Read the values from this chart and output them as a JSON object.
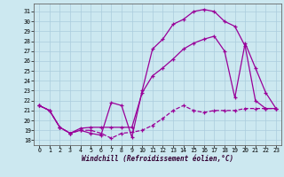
{
  "xlabel": "Windchill (Refroidissement éolien,°C)",
  "background_color": "#cce8f0",
  "grid_color": "#aaccdd",
  "line_color": "#990099",
  "xlim": [
    -0.5,
    23.5
  ],
  "ylim": [
    17.5,
    31.8
  ],
  "yticks": [
    18,
    19,
    20,
    21,
    22,
    23,
    24,
    25,
    26,
    27,
    28,
    29,
    30,
    31
  ],
  "xticks": [
    0,
    1,
    2,
    3,
    4,
    5,
    6,
    7,
    8,
    9,
    10,
    11,
    12,
    13,
    14,
    15,
    16,
    17,
    18,
    19,
    20,
    21,
    22,
    23
  ],
  "series1_x": [
    0,
    1,
    2,
    3,
    4,
    5,
    6,
    7,
    8,
    9,
    10,
    11,
    12,
    13,
    14,
    15,
    16,
    17,
    18,
    19,
    20,
    21,
    22,
    23
  ],
  "series1_y": [
    21.5,
    21.0,
    19.3,
    18.7,
    19.0,
    19.0,
    18.7,
    18.2,
    18.7,
    18.8,
    19.0,
    19.5,
    20.2,
    21.0,
    21.5,
    21.0,
    20.8,
    21.0,
    21.0,
    21.0,
    21.2,
    21.2,
    21.2,
    21.2
  ],
  "series2_x": [
    0,
    1,
    2,
    3,
    4,
    5,
    6,
    7,
    8,
    9,
    10,
    11,
    12,
    13,
    14,
    15,
    16,
    17,
    18,
    19,
    20,
    21,
    22,
    23
  ],
  "series2_y": [
    21.5,
    21.0,
    19.3,
    18.7,
    19.0,
    18.7,
    18.5,
    21.8,
    21.5,
    18.3,
    23.0,
    27.2,
    28.2,
    29.7,
    30.2,
    31.0,
    31.2,
    31.0,
    30.0,
    29.5,
    27.5,
    22.0,
    21.2,
    21.2
  ],
  "series3_x": [
    0,
    1,
    2,
    3,
    4,
    5,
    6,
    7,
    8,
    9,
    10,
    11,
    12,
    13,
    14,
    15,
    16,
    17,
    18,
    19,
    20,
    21,
    22,
    23
  ],
  "series3_y": [
    21.5,
    21.0,
    19.3,
    18.7,
    19.2,
    19.3,
    19.3,
    19.3,
    19.3,
    19.3,
    22.8,
    24.5,
    25.3,
    26.2,
    27.2,
    27.8,
    28.2,
    28.5,
    27.0,
    22.3,
    27.8,
    25.3,
    22.8,
    21.2
  ]
}
